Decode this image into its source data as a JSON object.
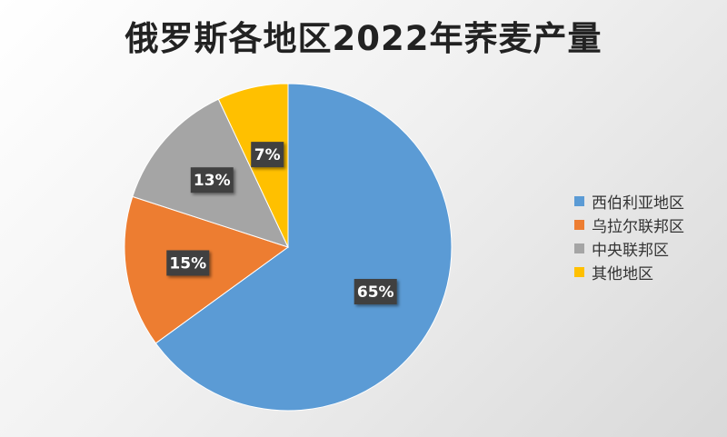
{
  "chart_data": {
    "type": "pie",
    "title": "俄罗斯各地区2022年荞麦产量",
    "legend_position": "right",
    "slices": [
      {
        "label": "西伯利亚地区",
        "value": 65,
        "value_label": "65%",
        "color": "#5B9BD5"
      },
      {
        "label": "乌拉尔联邦区",
        "value": 15,
        "value_label": "15%",
        "color": "#ED7D31"
      },
      {
        "label": "中央联邦区",
        "value": 13,
        "value_label": "13%",
        "color": "#A5A5A5"
      },
      {
        "label": "其他地区",
        "value": 7,
        "value_label": "7%",
        "color": "#FFC000"
      }
    ]
  }
}
